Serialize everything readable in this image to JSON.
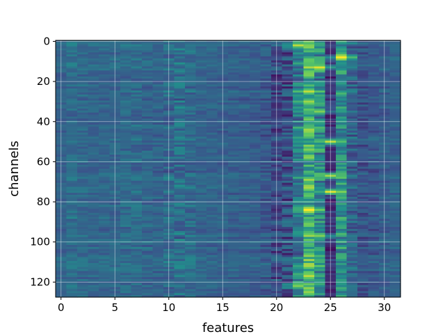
{
  "chart_data": {
    "type": "heatmap",
    "title": "",
    "xlabel": "features",
    "ylabel": "channels",
    "n_rows": 128,
    "n_cols": 32,
    "x_ticks": [
      0,
      5,
      10,
      15,
      20,
      25,
      30
    ],
    "y_ticks": [
      0,
      20,
      40,
      60,
      80,
      100,
      120
    ],
    "xlim": [
      -0.5,
      31.5
    ],
    "ylim": [
      127.5,
      -0.5
    ],
    "y_axis_inverted": true,
    "grid": true,
    "colormap": "viridis",
    "colorbar": false,
    "column_profile": [
      0.32,
      0.36,
      0.34,
      0.33,
      0.33,
      0.33,
      0.34,
      0.35,
      0.33,
      0.32,
      0.34,
      0.37,
      0.35,
      0.32,
      0.32,
      0.31,
      0.31,
      0.3,
      0.3,
      0.28,
      0.22,
      0.24,
      0.4,
      0.62,
      0.45,
      0.14,
      0.5,
      0.32,
      0.26,
      0.28,
      0.3,
      0.32
    ],
    "column_variation": [
      0.04,
      0.07,
      0.06,
      0.05,
      0.05,
      0.06,
      0.07,
      0.08,
      0.07,
      0.06,
      0.1,
      0.13,
      0.09,
      0.05,
      0.05,
      0.05,
      0.05,
      0.05,
      0.05,
      0.08,
      0.13,
      0.15,
      0.18,
      0.22,
      0.2,
      0.1,
      0.18,
      0.12,
      0.08,
      0.07,
      0.06,
      0.05
    ],
    "hotspots": [
      {
        "row": 2,
        "col": 22,
        "value": 0.9
      },
      {
        "row": 8,
        "col": 26,
        "value": 1.0
      },
      {
        "row": 13,
        "col": 24,
        "value": 0.95
      },
      {
        "row": 25,
        "col": 23,
        "value": 0.9
      },
      {
        "row": 30,
        "col": 23,
        "value": 0.85
      },
      {
        "row": 35,
        "col": 24,
        "value": 0.8
      },
      {
        "row": 44,
        "col": 23,
        "value": 0.85
      },
      {
        "row": 50,
        "col": 25,
        "value": 0.9
      },
      {
        "row": 54,
        "col": 23,
        "value": 0.8
      },
      {
        "row": 67,
        "col": 25,
        "value": 0.85
      },
      {
        "row": 75,
        "col": 25,
        "value": 0.95
      },
      {
        "row": 84,
        "col": 23,
        "value": 1.0
      },
      {
        "row": 97,
        "col": 24,
        "value": 0.8
      },
      {
        "row": 112,
        "col": 23,
        "value": 0.85
      },
      {
        "row": 117,
        "col": 23,
        "value": 0.9
      },
      {
        "row": 122,
        "col": 22,
        "value": 0.8
      }
    ]
  }
}
